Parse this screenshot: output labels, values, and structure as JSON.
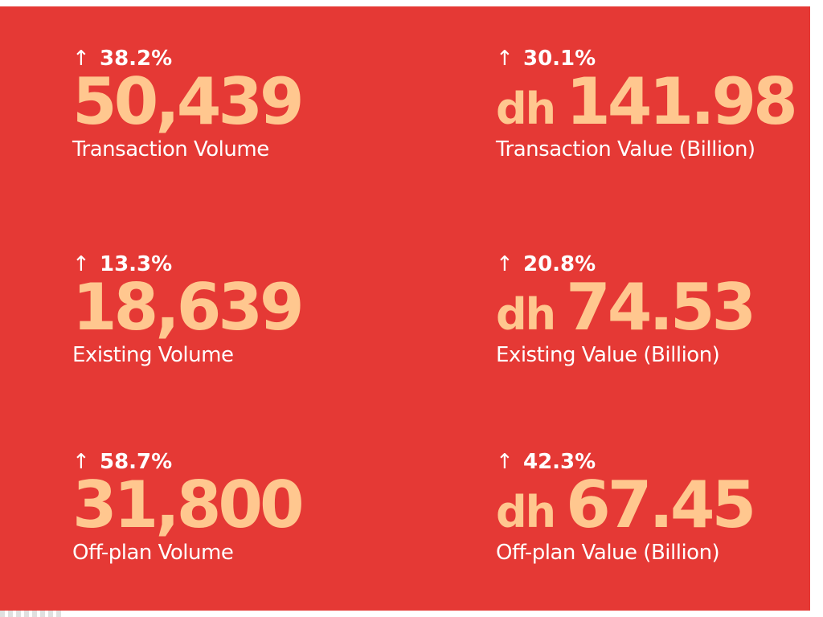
{
  "stats": [
    {
      "change": "38.2%",
      "value": "50,439",
      "label": "Transaction Volume"
    },
    {
      "change": "30.1%",
      "currency": "dh",
      "value": "141.98",
      "label": "Transaction Value (Billion)"
    },
    {
      "change": "13.3%",
      "value": "18,639",
      "label": "Existing Volume"
    },
    {
      "change": "20.8%",
      "currency": "dh",
      "value": "74.53",
      "label": "Existing Value (Billion)"
    },
    {
      "change": "58.7%",
      "value": "31,800",
      "label": "Off-plan Volume"
    },
    {
      "change": "42.3%",
      "currency": "dh",
      "value": "67.45",
      "label": "Off-plan Value (Billion)"
    }
  ],
  "icons": {
    "trend": "arrow-up-icon"
  },
  "colors": {
    "background": "#e53935",
    "value": "#ffc78f",
    "text": "#ffffff"
  }
}
